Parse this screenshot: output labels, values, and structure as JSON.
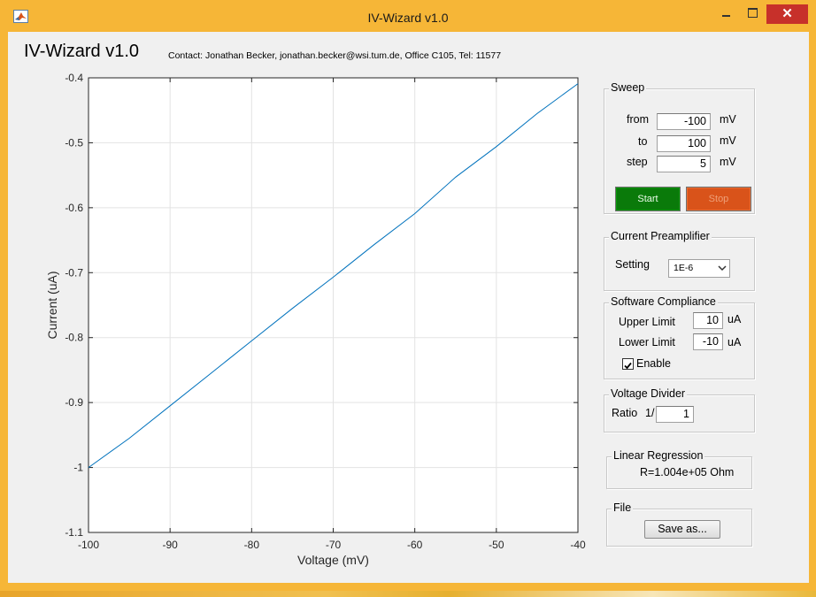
{
  "window": {
    "title": "IV-Wizard v1.0"
  },
  "header": {
    "app_title": "IV-Wizard v1.0",
    "contact": "Contact: Jonathan Becker, jonathan.becker@wsi.tum.de, Office C105, Tel: 11577"
  },
  "sweep": {
    "title": "Sweep",
    "from_label": "from",
    "from_value": "-100",
    "to_label": "to",
    "to_value": "100",
    "step_label": "step",
    "step_value": "5",
    "unit": "mV",
    "start_label": "Start",
    "stop_label": "Stop",
    "start_color": "#0a7a0a",
    "stop_color": "#d9531a"
  },
  "preamp": {
    "title": "Current Preamplifier",
    "setting_label": "Setting",
    "setting_value": "1E-6"
  },
  "compliance": {
    "title": "Software Compliance",
    "upper_label": "Upper Limit",
    "upper_value": "10",
    "lower_label": "Lower Limit",
    "lower_value": "-10",
    "unit": "uA",
    "enable_label": "Enable",
    "enabled": true
  },
  "divider": {
    "title": "Voltage Divider",
    "ratio_label": "Ratio",
    "ratio_prefix": "1/",
    "ratio_value": "1"
  },
  "regression": {
    "title": "Linear Regression",
    "result": "R=1.004e+05 Ohm"
  },
  "file": {
    "title": "File",
    "save_label": "Save as..."
  },
  "chart_data": {
    "type": "line",
    "xlabel": "Voltage (mV)",
    "ylabel": "Current (uA)",
    "xlim": [
      -100,
      -40
    ],
    "ylim": [
      -1.1,
      -0.4
    ],
    "xticks": [
      -100,
      -90,
      -80,
      -70,
      -60,
      -50,
      -40
    ],
    "yticks": [
      -0.4,
      -0.5,
      -0.6,
      -0.7,
      -0.8,
      -0.9,
      -1,
      -1.1
    ],
    "xtick_labels": [
      "-100",
      "-90",
      "-80",
      "-70",
      "-60",
      "-50",
      "-40"
    ],
    "ytick_labels": [
      "-0.4",
      "-0.5",
      "-0.6",
      "-0.7",
      "-0.8",
      "-0.9",
      "-1",
      "-1.1"
    ],
    "grid": true,
    "line_color": "#0072bd",
    "series": [
      {
        "x": [
          -100,
          -95,
          -90,
          -85,
          -80,
          -75,
          -70,
          -65,
          -60,
          -55,
          -50,
          -45,
          -40
        ],
        "values": [
          -1.0,
          -0.955,
          -0.905,
          -0.855,
          -0.805,
          -0.755,
          -0.707,
          -0.657,
          -0.609,
          -0.553,
          -0.506,
          -0.455,
          -0.409
        ]
      }
    ]
  }
}
